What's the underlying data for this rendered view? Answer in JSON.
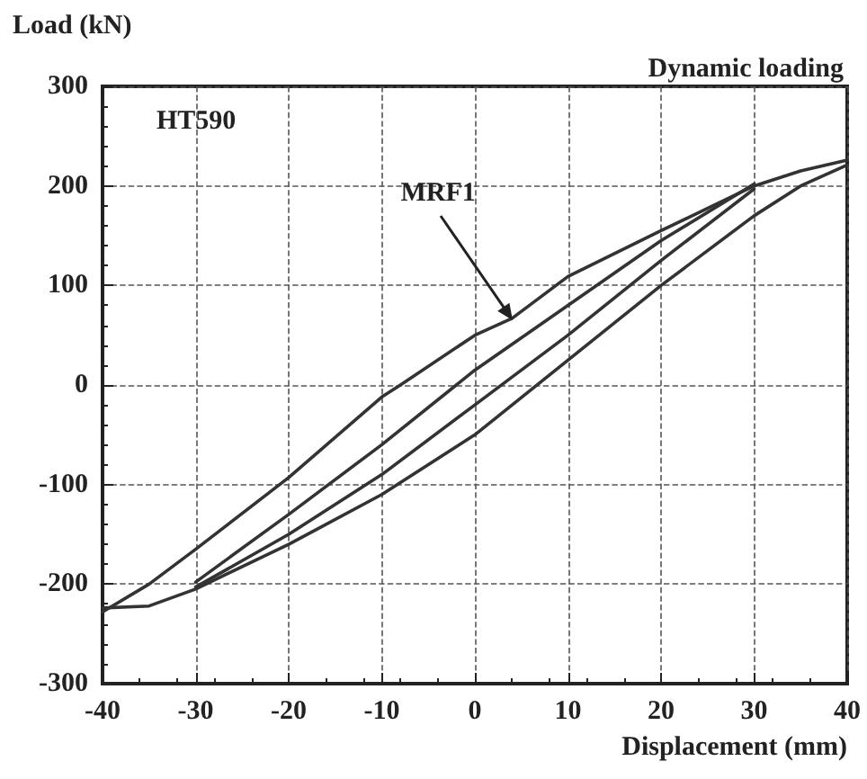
{
  "chart_data": {
    "type": "line",
    "title": "Dynamic loading",
    "xlabel": "Displacement (mm)",
    "ylabel": "Load (kN)",
    "annotations": [
      "HT590",
      {
        "text": "MRF1",
        "x": 4,
        "y": 65
      }
    ],
    "series": [
      {
        "color": "#333333",
        "x": [
          -40,
          -35,
          -30,
          -20,
          -10,
          -8,
          0,
          4,
          10,
          20,
          30,
          35,
          40
        ],
        "values": [
          -228,
          -200,
          -165,
          -93,
          -12,
          0,
          50,
          67,
          109,
          155,
          200,
          215,
          226
        ]
      },
      {
        "color": "#333333",
        "x": [
          -40,
          -35,
          -30,
          -20,
          -10,
          0,
          10,
          20,
          30,
          35,
          40
        ],
        "values": [
          -224,
          -222,
          -205,
          -160,
          -110,
          -50,
          25,
          100,
          170,
          200,
          221
        ]
      },
      {
        "color": "#333333",
        "x": [
          -30,
          -20,
          -10,
          0,
          10,
          20,
          30
        ],
        "values": [
          -198,
          -130,
          -60,
          15,
          80,
          145,
          202
        ]
      },
      {
        "color": "#333333",
        "x": [
          -30,
          -20,
          -10,
          0,
          10,
          20,
          30
        ],
        "values": [
          -203,
          -150,
          -90,
          -20,
          50,
          125,
          197
        ]
      }
    ],
    "xlim": [
      -40,
      40
    ],
    "xticks": [
      -40,
      -30,
      -20,
      -10,
      0,
      10,
      20,
      30,
      40
    ],
    "ylim": [
      -300,
      300
    ],
    "yticks": [
      -300,
      -200,
      -100,
      0,
      100,
      200,
      300
    ],
    "grid": true,
    "marker": "none",
    "line_style": "solid"
  }
}
